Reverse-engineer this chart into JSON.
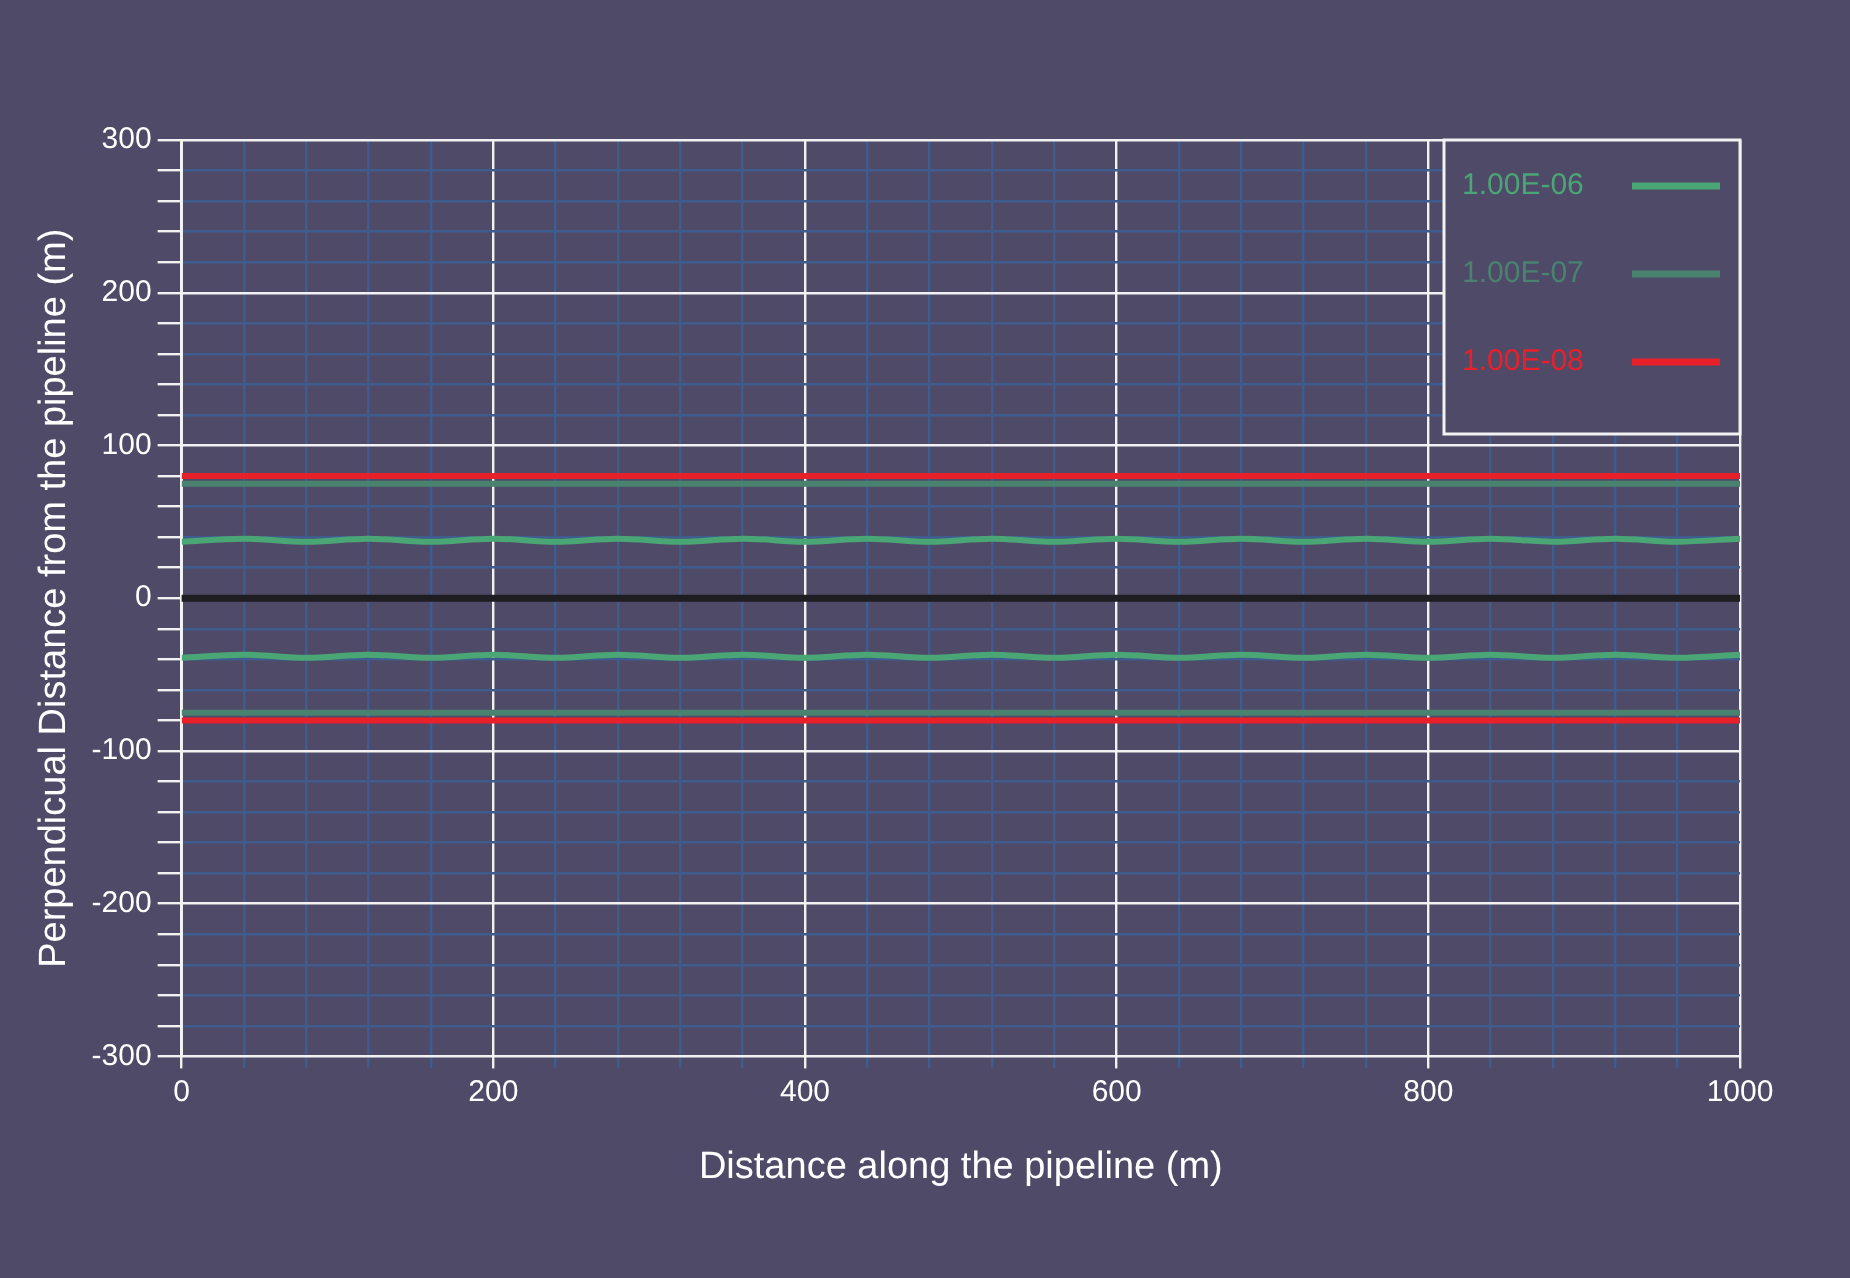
{
  "chart_data": {
    "type": "line",
    "xlabel": "Distance along the pipeline (m)",
    "ylabel": "Perpendicual Distance from the pipeline (m)",
    "xlim": [
      0,
      1000
    ],
    "ylim": [
      -300,
      300
    ],
    "xticks": [
      0,
      {
        "value": 40,
        "label": null
      },
      {
        "value": 80,
        "label": null
      },
      {
        "value": 120,
        "label": null
      },
      {
        "value": 160,
        "label": null
      },
      200,
      {
        "value": 240,
        "label": null
      },
      {
        "value": 280,
        "label": null
      },
      {
        "value": 320,
        "label": null
      },
      {
        "value": 360,
        "label": null
      },
      400,
      {
        "value": 440,
        "label": null
      },
      {
        "value": 480,
        "label": null
      },
      {
        "value": 520,
        "label": null
      },
      {
        "value": 560,
        "label": null
      },
      600,
      {
        "value": 640,
        "label": null
      },
      {
        "value": 680,
        "label": null
      },
      {
        "value": 720,
        "label": null
      },
      {
        "value": 760,
        "label": null
      },
      800,
      {
        "value": 840,
        "label": null
      },
      {
        "value": 880,
        "label": null
      },
      {
        "value": 920,
        "label": null
      },
      {
        "value": 960,
        "label": null
      },
      1000
    ],
    "yticks": [
      -300,
      {
        "value": -280,
        "label": null
      },
      {
        "value": -260,
        "label": null
      },
      {
        "value": -240,
        "label": null
      },
      {
        "value": -220,
        "label": null
      },
      -200,
      {
        "value": -180,
        "label": null
      },
      {
        "value": -160,
        "label": null
      },
      {
        "value": -140,
        "label": null
      },
      {
        "value": -120,
        "label": null
      },
      -100,
      {
        "value": -80,
        "label": null
      },
      {
        "value": -60,
        "label": null
      },
      {
        "value": -40,
        "label": null
      },
      {
        "value": -20,
        "label": null
      },
      0,
      {
        "value": 20,
        "label": null
      },
      {
        "value": 40,
        "label": null
      },
      {
        "value": 60,
        "label": null
      },
      {
        "value": 80,
        "label": null
      },
      100,
      {
        "value": 120,
        "label": null
      },
      {
        "value": 140,
        "label": null
      },
      {
        "value": 160,
        "label": null
      },
      {
        "value": 180,
        "label": null
      },
      200,
      {
        "value": 220,
        "label": null
      },
      {
        "value": 240,
        "label": null
      },
      {
        "value": 260,
        "label": null
      },
      {
        "value": 280,
        "label": null
      },
      300
    ],
    "grid": true,
    "legend": "top right",
    "marker": "none",
    "line_style": "solid",
    "ref_lines": [
      {
        "axis": "y",
        "value": 0,
        "label": null,
        "color": "#1e1e22"
      }
    ],
    "series": [
      {
        "name": "1.00E-06",
        "color": "#4ba675",
        "x": [
          0,
          40,
          80,
          120,
          160,
          200,
          240,
          280,
          320,
          360,
          400,
          440,
          480,
          520,
          560,
          600,
          640,
          680,
          720,
          760,
          800,
          840,
          880,
          920,
          960,
          1000
        ],
        "values": [
          37,
          39,
          37,
          39,
          37,
          39,
          37,
          39,
          37,
          39,
          37,
          39,
          37,
          39,
          37,
          39,
          37,
          39,
          37,
          39,
          37,
          39,
          37,
          39,
          37,
          39
        ]
      },
      {
        "color": "#4ba675",
        "x": [
          0,
          40,
          80,
          120,
          160,
          200,
          240,
          280,
          320,
          360,
          400,
          440,
          480,
          520,
          560,
          600,
          640,
          680,
          720,
          760,
          800,
          840,
          880,
          920,
          960,
          1000
        ],
        "values": [
          -39,
          -37,
          -39,
          -37,
          -39,
          -37,
          -39,
          -37,
          -39,
          -37,
          -39,
          -37,
          -39,
          -37,
          -39,
          -37,
          -39,
          -37,
          -39,
          -37,
          -39,
          -37,
          -39,
          -37,
          -39,
          -37
        ]
      },
      {
        "name": "1.00E-07",
        "color": "#4a8270",
        "x": [
          0,
          1000
        ],
        "values": [
          75,
          75
        ]
      },
      {
        "color": "#4a8270",
        "x": [
          0,
          1000
        ],
        "values": [
          -75,
          -75
        ]
      },
      {
        "name": "1.00E-08",
        "color": "#e8202a",
        "x": [
          0,
          1000
        ],
        "values": [
          80,
          80
        ]
      },
      {
        "color": "#e8202a",
        "x": [
          0,
          1000
        ],
        "values": [
          -80,
          -80
        ]
      }
    ]
  }
}
